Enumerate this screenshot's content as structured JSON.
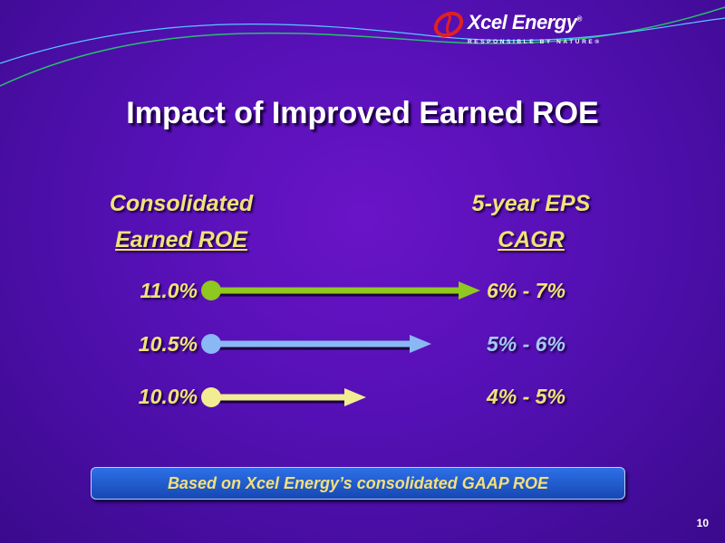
{
  "logo": {
    "name": "Xcel Energy",
    "mark": "®",
    "tagline": "RESPONSIBLE BY NATURE®"
  },
  "title": "Impact of Improved Earned ROE",
  "columns": {
    "left": {
      "line1": "Consolidated",
      "line2": "Earned ROE"
    },
    "right": {
      "line1": "5-year EPS",
      "line2": "CAGR"
    }
  },
  "rows": [
    {
      "roe": "11.0%",
      "cagr": "6% - 7%",
      "color": "#8fc81f",
      "cagr_color": "#f0e27a"
    },
    {
      "roe": "10.5%",
      "cagr": "5% - 6%",
      "color": "#8ab8f5",
      "cagr_color": "#a6c9f7"
    },
    {
      "roe": "10.0%",
      "cagr": "4% - 5%",
      "color": "#f2ec92",
      "cagr_color": "#f0e27a"
    }
  ],
  "note": "Based on Xcel Energy’s consolidated GAAP ROE",
  "page_number": "10",
  "colors": {
    "background": "#5410b4",
    "heading": "#f0e27a",
    "note_box": "#2d70e6"
  }
}
